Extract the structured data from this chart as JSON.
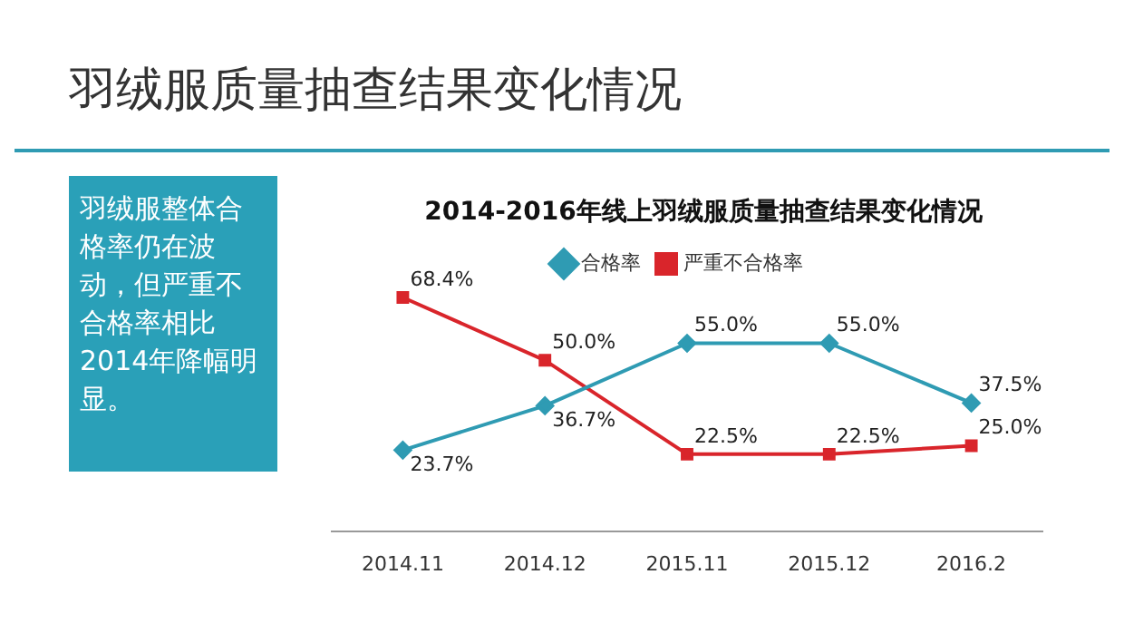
{
  "chart_data": {
    "type": "line",
    "title": "羽绒服质量抽查结果变化情况",
    "subtitle": "2014-2016年线上羽绒服质量抽查结果变化情况",
    "annotations": [
      "羽绒服整体合格率仍在波动，但严重不合格率相比2014年降幅明显。"
    ],
    "categories": [
      "2014.11",
      "2014.12",
      "2015.11",
      "2015.12",
      "2016.2"
    ],
    "relative": false,
    "legend": "top",
    "grid": false,
    "series": [
      {
        "name": "合格率",
        "color": "#2f9bb3",
        "marker": "diamond",
        "values": [
          23.7,
          36.7,
          55.0,
          55.0,
          37.5
        ],
        "value_labels": [
          "23.7%",
          "36.7%",
          "55.0%",
          "55.0%",
          "37.5%"
        ]
      },
      {
        "name": "严重不合格率",
        "color": "#d9252b",
        "marker": "square",
        "values": [
          68.4,
          50.0,
          22.5,
          22.5,
          25.0
        ],
        "value_labels": [
          "68.4%",
          "50.0%",
          "22.5%",
          "22.5%",
          "25.0%"
        ]
      }
    ]
  }
}
